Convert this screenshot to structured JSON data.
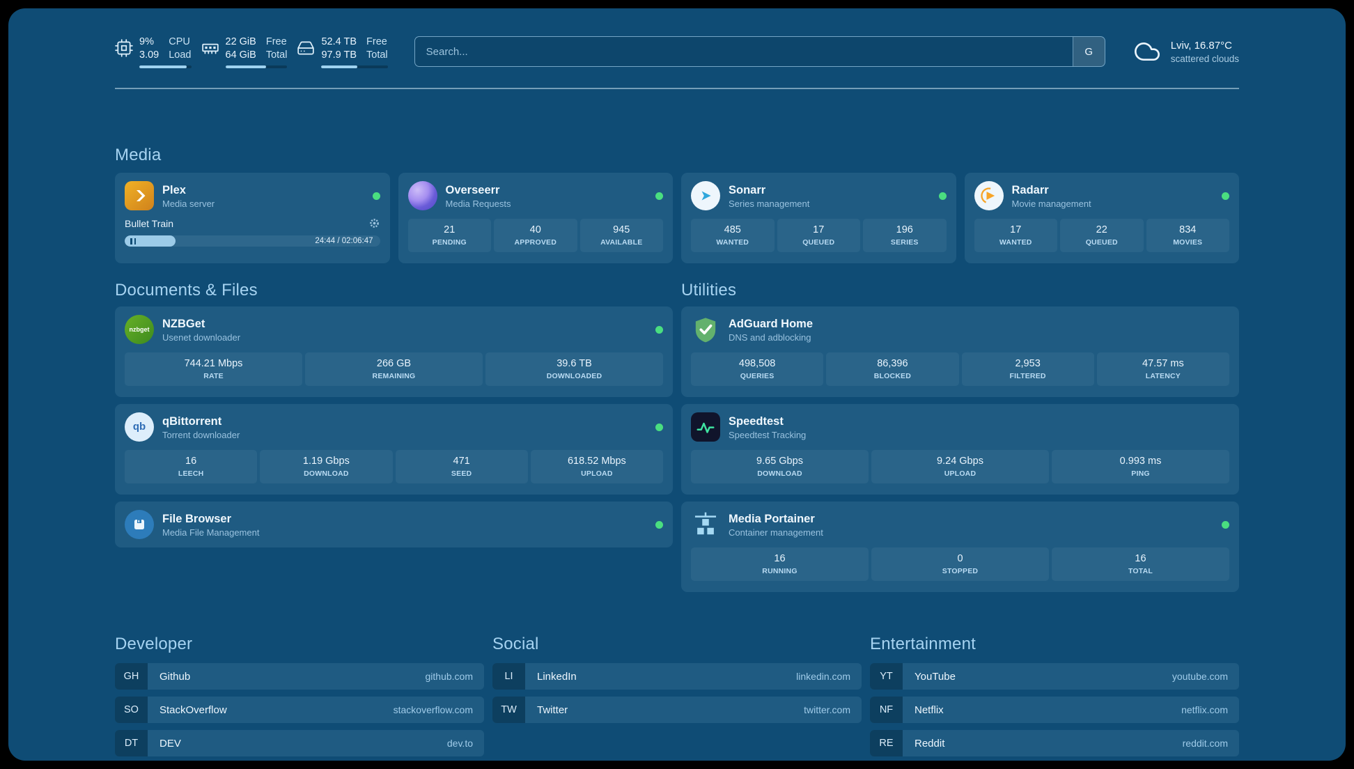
{
  "colors": {
    "background": "#0f4c75",
    "card": "#1f5b82",
    "stat_box": "#2a6489",
    "status_online": "#4ade80",
    "section_header_text": "#a6d3f1",
    "progress_fill": "#9fd2f0"
  },
  "topbar": {
    "cpu": {
      "icon": "cpu-icon",
      "value_top": "9%",
      "value_bottom": "3.09",
      "label_top": "CPU",
      "label_bottom": "Load",
      "bar_percent": 91
    },
    "memory": {
      "icon": "memory-icon",
      "value_top": "22 GiB",
      "value_bottom": "64 GiB",
      "label_top": "Free",
      "label_bottom": "Total",
      "bar_percent": 66
    },
    "disk": {
      "icon": "disk-icon",
      "value_top": "52.4 TB",
      "value_bottom": "97.9 TB",
      "label_top": "Free",
      "label_bottom": "Total",
      "bar_percent": 54
    },
    "search": {
      "placeholder": "Search...",
      "provider_button": "G"
    },
    "weather": {
      "icon": "cloud-icon",
      "location": "Lviv, 16.87°C",
      "condition": "scattered clouds"
    }
  },
  "media": {
    "header": "Media",
    "plex": {
      "icon": "plex-icon",
      "title": "Plex",
      "subtitle": "Media server",
      "status": "online",
      "now_playing": "Bullet Train",
      "progress_percent": 20,
      "time": "24:44 / 02:06:47"
    },
    "overseerr": {
      "icon": "overseerr-icon",
      "title": "Overseerr",
      "subtitle": "Media Requests",
      "status": "online",
      "stats": [
        {
          "value": "21",
          "label": "PENDING"
        },
        {
          "value": "40",
          "label": "APPROVED"
        },
        {
          "value": "945",
          "label": "AVAILABLE"
        }
      ]
    },
    "sonarr": {
      "icon": "sonarr-icon",
      "title": "Sonarr",
      "subtitle": "Series management",
      "status": "online",
      "stats": [
        {
          "value": "485",
          "label": "WANTED"
        },
        {
          "value": "17",
          "label": "QUEUED"
        },
        {
          "value": "196",
          "label": "SERIES"
        }
      ]
    },
    "radarr": {
      "icon": "radarr-icon",
      "title": "Radarr",
      "subtitle": "Movie management",
      "status": "online",
      "stats": [
        {
          "value": "17",
          "label": "WANTED"
        },
        {
          "value": "22",
          "label": "QUEUED"
        },
        {
          "value": "834",
          "label": "MOVIES"
        }
      ]
    }
  },
  "documents": {
    "header": "Documents & Files",
    "nzbget": {
      "icon": "nzbget-icon",
      "badge_text": "nzbget",
      "title": "NZBGet",
      "subtitle": "Usenet downloader",
      "status": "online",
      "stats": [
        {
          "value": "744.21 Mbps",
          "label": "RATE"
        },
        {
          "value": "266 GB",
          "label": "REMAINING"
        },
        {
          "value": "39.6 TB",
          "label": "DOWNLOADED"
        }
      ]
    },
    "qbittorrent": {
      "icon": "qbittorrent-icon",
      "badge_text": "qb",
      "title": "qBittorrent",
      "subtitle": "Torrent downloader",
      "status": "online",
      "stats": [
        {
          "value": "16",
          "label": "LEECH"
        },
        {
          "value": "1.19 Gbps",
          "label": "DOWNLOAD"
        },
        {
          "value": "471",
          "label": "SEED"
        },
        {
          "value": "618.52 Mbps",
          "label": "UPLOAD"
        }
      ]
    },
    "filebrowser": {
      "icon": "filebrowser-icon",
      "title": "File Browser",
      "subtitle": "Media File Management",
      "status": "online"
    }
  },
  "utilities": {
    "header": "Utilities",
    "adguard": {
      "icon": "adguard-icon",
      "title": "AdGuard Home",
      "subtitle": "DNS and adblocking",
      "stats": [
        {
          "value": "498,508",
          "label": "QUERIES"
        },
        {
          "value": "86,396",
          "label": "BLOCKED"
        },
        {
          "value": "2,953",
          "label": "FILTERED"
        },
        {
          "value": "47.57 ms",
          "label": "LATENCY"
        }
      ]
    },
    "speedtest": {
      "icon": "speedtest-icon",
      "title": "Speedtest",
      "subtitle": "Speedtest Tracking",
      "stats": [
        {
          "value": "9.65 Gbps",
          "label": "DOWNLOAD"
        },
        {
          "value": "9.24 Gbps",
          "label": "UPLOAD"
        },
        {
          "value": "0.993 ms",
          "label": "PING"
        }
      ]
    },
    "portainer": {
      "icon": "portainer-icon",
      "title": "Media Portainer",
      "subtitle": "Container management",
      "status": "online",
      "stats": [
        {
          "value": "16",
          "label": "RUNNING"
        },
        {
          "value": "0",
          "label": "STOPPED"
        },
        {
          "value": "16",
          "label": "TOTAL"
        }
      ]
    }
  },
  "bookmarks": {
    "developer": {
      "header": "Developer",
      "items": [
        {
          "abbr": "GH",
          "name": "Github",
          "url": "github.com"
        },
        {
          "abbr": "SO",
          "name": "StackOverflow",
          "url": "stackoverflow.com"
        },
        {
          "abbr": "DT",
          "name": "DEV",
          "url": "dev.to"
        }
      ]
    },
    "social": {
      "header": "Social",
      "items": [
        {
          "abbr": "LI",
          "name": "LinkedIn",
          "url": "linkedin.com"
        },
        {
          "abbr": "TW",
          "name": "Twitter",
          "url": "twitter.com"
        }
      ]
    },
    "entertainment": {
      "header": "Entertainment",
      "items": [
        {
          "abbr": "YT",
          "name": "YouTube",
          "url": "youtube.com"
        },
        {
          "abbr": "NF",
          "name": "Netflix",
          "url": "netflix.com"
        },
        {
          "abbr": "RE",
          "name": "Reddit",
          "url": "reddit.com"
        }
      ]
    }
  }
}
